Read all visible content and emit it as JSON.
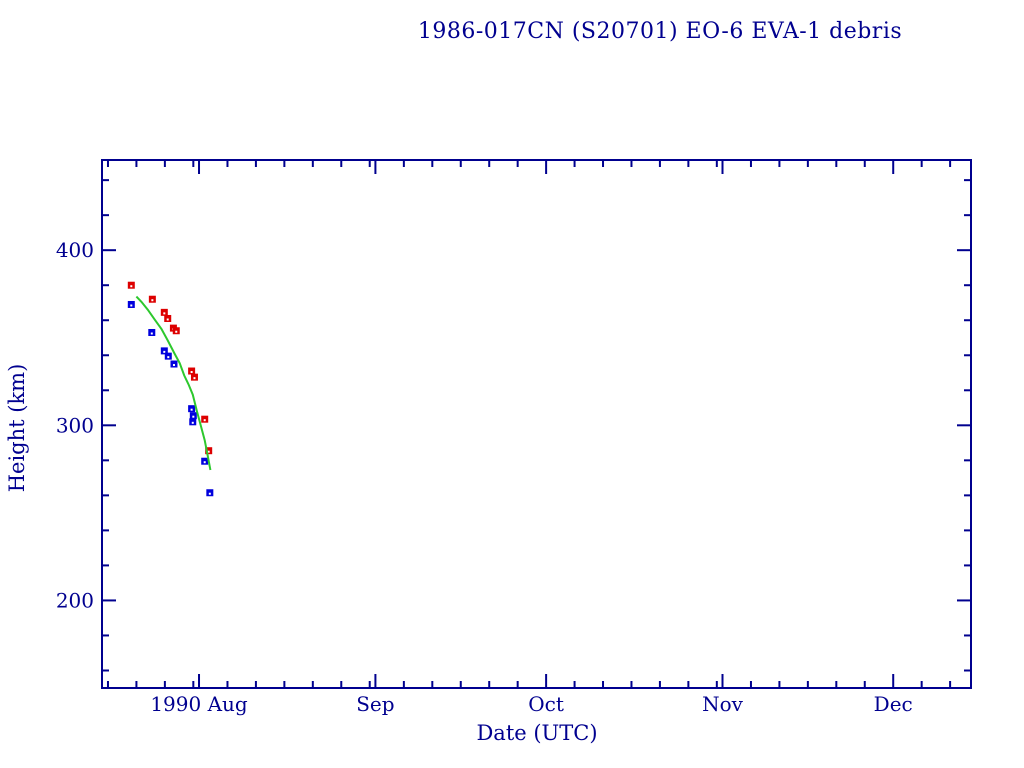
{
  "page": {
    "background_color": "#ffffff",
    "axis_color": "#00008f"
  },
  "chart_data": {
    "type": "scatter",
    "title": "1986-017CN (S20701) EO-6 EVA-1 debris",
    "xlabel": "Date (UTC)",
    "ylabel": "Height (km)",
    "x_unit": "days from 1990-08-01 00:00 UTC",
    "xlim": [
      -17.05,
      135.67
    ],
    "ylim": [
      150,
      451.5
    ],
    "grid": false,
    "legend_position": "none",
    "y_axis": {
      "major_ticks": [
        200,
        300,
        400
      ],
      "minor_tick_step": 20
    },
    "x_axis": {
      "minor_tick_day_interval": 5,
      "months": [
        {
          "label": null,
          "start": -31,
          "days": 31
        },
        {
          "label": "1990 Aug",
          "start": 0,
          "days": 31
        },
        {
          "label": "Sep",
          "start": 31,
          "days": 30
        },
        {
          "label": "Oct",
          "start": 61,
          "days": 31
        },
        {
          "label": "Nov",
          "start": 92,
          "days": 30
        },
        {
          "label": "Dec",
          "start": 122,
          "days": 31
        }
      ]
    },
    "series": [
      {
        "name": "red-squares",
        "type": "scatter",
        "marker": "filled-square",
        "color": "#dd0000",
        "points": [
          [
            -11.9,
            380.0
          ],
          [
            -8.2,
            372.0
          ],
          [
            -6.1,
            364.5
          ],
          [
            -5.5,
            361.0
          ],
          [
            -4.5,
            355.5
          ],
          [
            -4.0,
            354.0
          ],
          [
            -1.3,
            331.0
          ],
          [
            -0.8,
            327.5
          ],
          [
            1.0,
            303.5
          ],
          [
            1.7,
            285.5
          ]
        ]
      },
      {
        "name": "blue-squares",
        "type": "scatter",
        "marker": "filled-square",
        "color": "#0000dd",
        "points": [
          [
            -11.9,
            369.0
          ],
          [
            -8.3,
            353.0
          ],
          [
            -6.1,
            342.5
          ],
          [
            -5.4,
            339.5
          ],
          [
            -4.4,
            335.0
          ],
          [
            -1.3,
            309.5
          ],
          [
            -1.1,
            302.0
          ],
          [
            -1.0,
            305.5
          ],
          [
            1.0,
            279.5
          ],
          [
            1.9,
            261.5
          ]
        ]
      },
      {
        "name": "green-curve",
        "type": "line",
        "color": "#2dc82d",
        "points": [
          [
            -11.0,
            373.5
          ],
          [
            -10.1,
            370.5
          ],
          [
            -9.0,
            366.0
          ],
          [
            -7.8,
            360.5
          ],
          [
            -6.6,
            355.0
          ],
          [
            -5.5,
            348.5
          ],
          [
            -4.3,
            341.0
          ],
          [
            -3.4,
            335.5
          ],
          [
            -2.6,
            328.5
          ],
          [
            -1.8,
            323.0
          ],
          [
            -1.1,
            317.5
          ],
          [
            -0.4,
            308.5
          ],
          [
            0.3,
            300.0
          ],
          [
            1.0,
            291.5
          ],
          [
            1.5,
            283.0
          ],
          [
            2.0,
            274.5
          ]
        ]
      }
    ]
  }
}
